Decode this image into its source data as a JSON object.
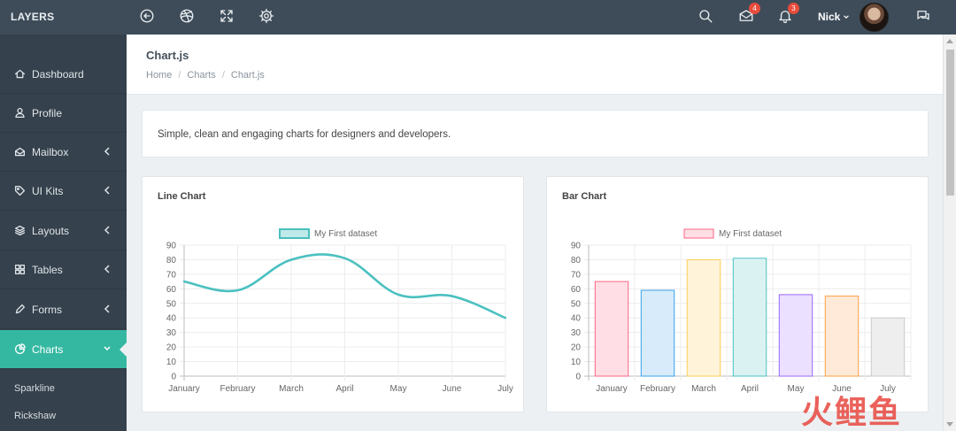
{
  "app": {
    "brand": "LAYERS"
  },
  "topbar": {
    "icons": [
      "back-circle-icon",
      "dribbble-icon",
      "fullscreen-icon",
      "gear-icon",
      "search-icon",
      "mail-icon",
      "bell-icon",
      "chat-icon"
    ],
    "mail_badge": "4",
    "bell_badge": "3",
    "user_name": "Nick"
  },
  "sidebar": {
    "items": [
      {
        "label": "Dashboard",
        "icon": "home-icon"
      },
      {
        "label": "Profile",
        "icon": "user-icon"
      },
      {
        "label": "Mailbox",
        "icon": "inbox-icon"
      },
      {
        "label": "UI Kits",
        "icon": "tag-icon"
      },
      {
        "label": "Layouts",
        "icon": "layers-icon"
      },
      {
        "label": "Tables",
        "icon": "grid-icon"
      },
      {
        "label": "Forms",
        "icon": "pencil-icon"
      },
      {
        "label": "Charts",
        "icon": "pie-chart-icon"
      }
    ],
    "sub_items": [
      "Sparkline",
      "Rickshaw"
    ]
  },
  "page": {
    "title": "Chart.js",
    "breadcrumb": [
      "Home",
      "Charts",
      "Chart.js"
    ],
    "intro": "Simple, clean and engaging charts for designers and developers."
  },
  "chart_data": [
    {
      "type": "line",
      "title": "Line Chart",
      "categories": [
        "January",
        "February",
        "March",
        "April",
        "May",
        "June",
        "July"
      ],
      "series": [
        {
          "name": "My First dataset",
          "values": [
            65,
            59,
            80,
            81,
            56,
            55,
            40
          ]
        }
      ],
      "ylim": [
        0,
        90
      ],
      "yticks": [
        "0",
        "10",
        "20",
        "30",
        "40",
        "50",
        "60",
        "70",
        "80",
        "90"
      ],
      "grid": true,
      "legend": "top-center",
      "color": "#4bc0c0"
    },
    {
      "type": "bar",
      "title": "Bar Chart",
      "categories": [
        "January",
        "February",
        "March",
        "April",
        "May",
        "June",
        "July"
      ],
      "series": [
        {
          "name": "My First dataset",
          "values": [
            65,
            59,
            80,
            81,
            56,
            55,
            40
          ]
        }
      ],
      "ylim": [
        0,
        90
      ],
      "yticks": [
        "0",
        "10",
        "20",
        "30",
        "40",
        "50",
        "60",
        "70",
        "80",
        "90"
      ],
      "grid": true,
      "legend": "top-center",
      "bar_fills": [
        "#ffdfe5",
        "#d7ebfa",
        "#fff4d9",
        "#dbf2f2",
        "#ebe0ff",
        "#ffead9",
        "#eeeeef"
      ],
      "bar_borders": [
        "#ff6384",
        "#36a2eb",
        "#ffce56",
        "#4bc0c0",
        "#9966ff",
        "#ff9f40",
        "#c9cbcf"
      ],
      "legend_fill": "#ffdfe5",
      "legend_border": "#ff6384"
    }
  ],
  "watermark": "火鲤鱼"
}
